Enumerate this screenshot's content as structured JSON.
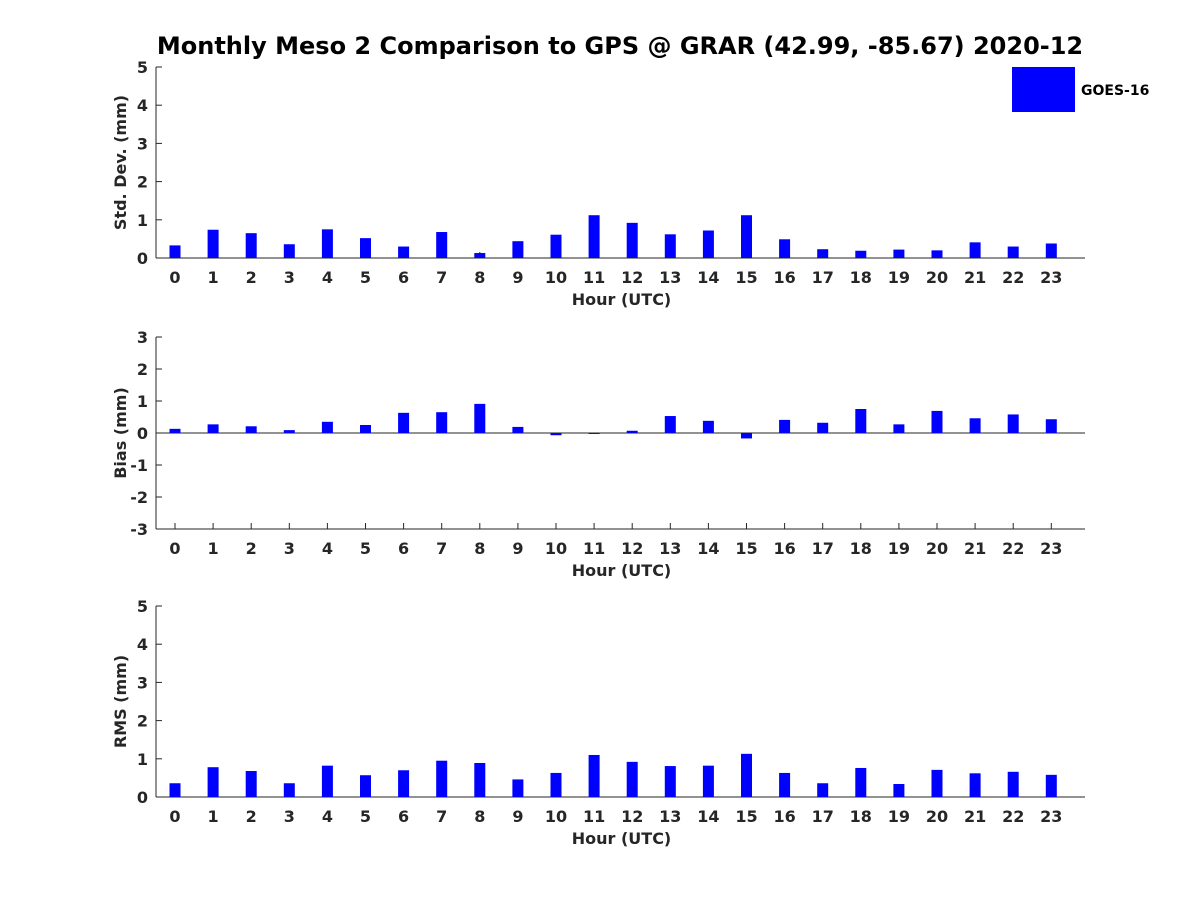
{
  "title": "Monthly Meso 2 Comparison to GPS @ GRAR (42.99, -85.67) 2020-12",
  "legend": {
    "label": "GOES-16",
    "color": "#0000ff",
    "placement": "top-right"
  },
  "chart_data": [
    {
      "type": "bar",
      "ylabel": "Std. Dev. (mm)",
      "xlabel": "Hour (UTC)",
      "ylim": [
        0,
        5
      ],
      "yticks": [
        0,
        1,
        2,
        3,
        4,
        5
      ],
      "categories": [
        "0",
        "1",
        "2",
        "3",
        "4",
        "5",
        "6",
        "7",
        "8",
        "9",
        "10",
        "11",
        "12",
        "13",
        "14",
        "15",
        "16",
        "17",
        "18",
        "19",
        "20",
        "21",
        "22",
        "23"
      ],
      "series": [
        {
          "name": "GOES-16",
          "color": "#0000ff",
          "values": [
            0.33,
            0.74,
            0.65,
            0.36,
            0.75,
            0.52,
            0.3,
            0.68,
            0.13,
            0.44,
            0.61,
            1.12,
            0.92,
            0.62,
            0.72,
            1.12,
            0.49,
            0.23,
            0.19,
            0.22,
            0.2,
            0.41,
            0.3,
            0.38
          ]
        }
      ],
      "grid": false
    },
    {
      "type": "bar",
      "ylabel": "Bias (mm)",
      "xlabel": "Hour (UTC)",
      "ylim": [
        -3,
        3
      ],
      "yticks": [
        -3,
        -2,
        -1,
        0,
        1,
        2,
        3
      ],
      "categories": [
        "0",
        "1",
        "2",
        "3",
        "4",
        "5",
        "6",
        "7",
        "8",
        "9",
        "10",
        "11",
        "12",
        "13",
        "14",
        "15",
        "16",
        "17",
        "18",
        "19",
        "20",
        "21",
        "22",
        "23"
      ],
      "series": [
        {
          "name": "GOES-16",
          "color": "#0000ff",
          "values": [
            0.13,
            0.27,
            0.21,
            0.09,
            0.35,
            0.25,
            0.63,
            0.65,
            0.91,
            0.19,
            -0.07,
            -0.03,
            0.07,
            0.53,
            0.38,
            -0.17,
            0.41,
            0.32,
            0.75,
            0.27,
            0.69,
            0.46,
            0.58,
            0.43
          ]
        }
      ],
      "grid": false
    },
    {
      "type": "bar",
      "ylabel": "RMS (mm)",
      "xlabel": "Hour (UTC)",
      "ylim": [
        0,
        5
      ],
      "yticks": [
        0,
        1,
        2,
        3,
        4,
        5
      ],
      "categories": [
        "0",
        "1",
        "2",
        "3",
        "4",
        "5",
        "6",
        "7",
        "8",
        "9",
        "10",
        "11",
        "12",
        "13",
        "14",
        "15",
        "16",
        "17",
        "18",
        "19",
        "20",
        "21",
        "22",
        "23"
      ],
      "series": [
        {
          "name": "GOES-16",
          "color": "#0000ff",
          "values": [
            0.36,
            0.78,
            0.68,
            0.36,
            0.82,
            0.57,
            0.7,
            0.95,
            0.89,
            0.46,
            0.63,
            1.1,
            0.92,
            0.81,
            0.82,
            1.13,
            0.63,
            0.36,
            0.76,
            0.34,
            0.71,
            0.62,
            0.66,
            0.58
          ]
        }
      ],
      "grid": false
    }
  ]
}
